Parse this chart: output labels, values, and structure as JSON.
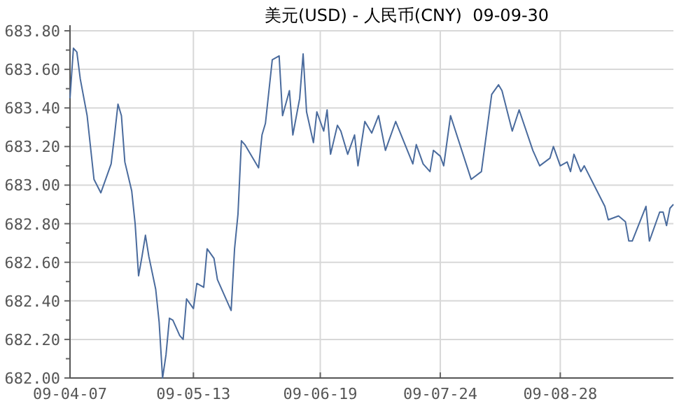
{
  "chart_data": {
    "type": "line",
    "title": "美元(USD) - 人民币(CNY)  09-09-30",
    "x": [
      "--04-07",
      "--04-08",
      "--04-09",
      "--04-10",
      "--04-12",
      "--04-14",
      "--04-16",
      "--04-19",
      "--04-20",
      "--04-21",
      "--04-22",
      "--04-23",
      "--04-25",
      "--04-26",
      "--04-27",
      "--04-28",
      "--04-29",
      "--04-30",
      "--05-02",
      "--05-03",
      "--05-04",
      "--05-05",
      "--05-06",
      "--05-07",
      "--05-09",
      "--05-10",
      "--05-11",
      "--05-13",
      "--05-14",
      "--05-16",
      "--05-17",
      "--05-19",
      "--05-20",
      "--05-24",
      "--05-25",
      "--05-26",
      "--05-27",
      "--05-28",
      "--06-01",
      "--06-02",
      "--06-03",
      "--06-05",
      "--06-07",
      "--06-08",
      "--06-10",
      "--06-11",
      "--06-13",
      "--06-14",
      "--06-15",
      "--06-17",
      "--06-18",
      "--06-20",
      "--06-21",
      "--06-22",
      "--06-24",
      "--06-25",
      "--06-27",
      "--06-29",
      "--06-30",
      "--07-02",
      "--07-04",
      "--07-06",
      "--07-08",
      "--07-11",
      "--07-16",
      "--07-17",
      "--07-19",
      "--07-21",
      "--07-22",
      "--07-24",
      "--07-25",
      "--07-27",
      "--08-02",
      "--08-05",
      "--08-08",
      "--08-10",
      "--08-11",
      "--08-14",
      "--08-16",
      "--08-20",
      "--08-22",
      "--08-25",
      "--08-26",
      "--08-28",
      "--08-30",
      "--08-31",
      "--09-01",
      "--09-03",
      "--09-04",
      "--09-10",
      "--09-11",
      "--09-14",
      "--09-16",
      "--09-17",
      "--09-18",
      "--09-22",
      "--09-23",
      "--09-26",
      "--09-27",
      "--09-28",
      "--09-29",
      "--09-30"
    ],
    "series": [
      {
        "color": "#4a6b9d",
        "values": [
          683.45,
          683.71,
          683.69,
          683.55,
          683.36,
          683.03,
          682.96,
          683.11,
          683.26,
          683.42,
          683.36,
          683.12,
          682.97,
          682.8,
          682.53,
          682.63,
          682.74,
          682.63,
          682.46,
          682.29,
          682.0,
          682.12,
          682.31,
          682.3,
          682.22,
          682.2,
          682.41,
          682.36,
          682.49,
          682.47,
          682.67,
          682.62,
          682.51,
          682.35,
          682.67,
          682.85,
          683.23,
          683.21,
          683.09,
          683.26,
          683.32,
          683.65,
          683.67,
          683.36,
          683.49,
          683.26,
          683.45,
          683.68,
          683.38,
          683.22,
          683.38,
          683.28,
          683.39,
          683.16,
          683.31,
          683.28,
          683.16,
          683.26,
          683.1,
          683.33,
          683.27,
          683.36,
          683.18,
          683.33,
          683.11,
          683.21,
          683.11,
          683.07,
          683.18,
          683.15,
          683.1,
          683.36,
          683.03,
          683.07,
          683.47,
          683.52,
          683.49,
          683.28,
          683.39,
          683.18,
          683.1,
          683.14,
          683.2,
          683.1,
          683.12,
          683.07,
          683.16,
          683.07,
          683.1,
          682.89,
          682.82,
          682.84,
          682.81,
          682.71,
          682.71,
          682.89,
          682.71,
          682.86,
          682.86,
          682.79,
          682.88,
          682.9
        ]
      }
    ],
    "xlim": [
      "--04-07",
      "--09-30"
    ],
    "xticks": [
      {
        "value": "--04-07",
        "label": "09-04-07"
      },
      {
        "value": "--05-13",
        "label": "09-05-13"
      },
      {
        "value": "--06-19",
        "label": "09-06-19"
      },
      {
        "value": "--07-24",
        "label": "09-07-24"
      },
      {
        "value": "--08-28",
        "label": "09-08-28"
      }
    ],
    "ylim": [
      682.0,
      683.8
    ],
    "yticks": [
      {
        "value": 682.0,
        "label": "682.00"
      },
      {
        "value": 682.2,
        "label": "682.20"
      },
      {
        "value": 682.4,
        "label": "682.40"
      },
      {
        "value": 682.6,
        "label": "682.60"
      },
      {
        "value": 682.8,
        "label": "682.80"
      },
      {
        "value": 683.0,
        "label": "683.00"
      },
      {
        "value": 683.2,
        "label": "683.20"
      },
      {
        "value": 683.4,
        "label": "683.40"
      },
      {
        "value": 683.6,
        "label": "683.60"
      },
      {
        "value": 683.8,
        "label": "683.80"
      }
    ],
    "grid": true,
    "marker": "none",
    "line_style": "solid"
  }
}
